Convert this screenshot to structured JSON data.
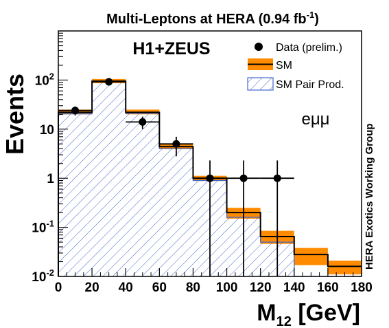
{
  "chart_data": {
    "type": "bar",
    "title_main": "Multi-Leptons at HERA (0.94 fb",
    "title_sup": "-1",
    "title_close": ")",
    "experiment_label": "H1+ZEUS",
    "channel_label": "eμμ",
    "side_label": "HERA Exotics Working Group",
    "ylabel": "Events",
    "xlabel_main": "M",
    "xlabel_sub": "12",
    "xlabel_unit": " [GeV]",
    "xlim": [
      0,
      180
    ],
    "ylim": [
      0.01,
      1000
    ],
    "y_scale": "log",
    "x_ticks": [
      "0",
      "20",
      "40",
      "60",
      "80",
      "100",
      "120",
      "140",
      "160",
      "180"
    ],
    "y_ticks": [
      {
        "value": 0.01,
        "base": "10",
        "exp": "-2"
      },
      {
        "value": 0.1,
        "base": "10",
        "exp": "-1"
      },
      {
        "value": 1,
        "base": "1",
        "exp": ""
      },
      {
        "value": 10,
        "base": "10",
        "exp": ""
      },
      {
        "value": 100,
        "base": "10",
        "exp": "2"
      }
    ],
    "legend_position": "top-right",
    "legend": [
      {
        "label": "Data (prelim.)",
        "style": "marker"
      },
      {
        "label": "SM",
        "style": "band"
      },
      {
        "label": "SM Pair Prod.",
        "style": "hatch"
      }
    ],
    "bin_edges": [
      0,
      20,
      40,
      60,
      80,
      100,
      120,
      140,
      160,
      180
    ],
    "sm": {
      "name": "SM",
      "values": [
        22,
        95,
        22,
        4.4,
        1.0,
        0.2,
        0.065,
        0.028,
        0.016
      ],
      "band_low": [
        20,
        86,
        20,
        3.9,
        0.88,
        0.15,
        0.046,
        0.017,
        0.011
      ],
      "band_high": [
        25,
        105,
        25,
        5.0,
        1.12,
        0.25,
        0.085,
        0.038,
        0.021
      ]
    },
    "pair_production": {
      "name": "SM Pair Prod.",
      "values": [
        20.5,
        92,
        21,
        4.0,
        0.9,
        0.16,
        0.05,
        0.0,
        0.0
      ]
    },
    "data_points": [
      {
        "x": 10,
        "y": 24,
        "err_low": 19,
        "err_high": 29
      },
      {
        "x": 30,
        "y": 92,
        "err_low": 82,
        "err_high": 102
      },
      {
        "x": 50,
        "y": 14,
        "err_low": 10,
        "err_high": 18
      },
      {
        "x": 70,
        "y": 5,
        "err_low": 2.8,
        "err_high": 7
      },
      {
        "x": 90,
        "y": 1,
        "err_low": 0.01,
        "err_high": 2.3
      },
      {
        "x": 110,
        "y": 1,
        "err_low": 0.01,
        "err_high": 2.3
      },
      {
        "x": 130,
        "y": 1,
        "err_low": 0.01,
        "err_high": 2.3
      }
    ],
    "data_x_halfwidth": 10,
    "colors": {
      "sm_band": "#ff8c00",
      "sm_line": "#000000",
      "hatch": "#4466cc",
      "data": "#000000"
    }
  }
}
